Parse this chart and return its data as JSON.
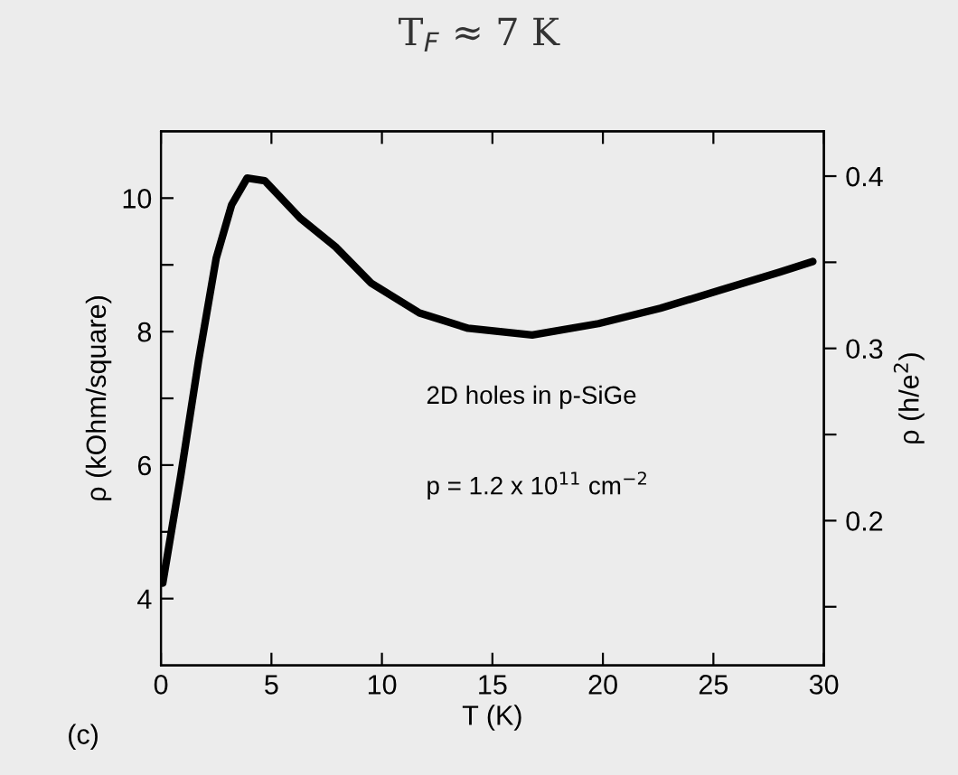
{
  "chart_data": {
    "type": "line",
    "title": "T$_{F}$ ≈ 7 K",
    "xlabel": "T (K)",
    "ylabel": "ρ (kOhm/square)",
    "y2label": "ρ (h/e$^{2}$)",
    "annotations": [
      "2D holes in p-SiGe",
      "p = 1.2 x 10$^{11}$ cm$^{−2}$",
      "(c)"
    ],
    "x": [
      0.08,
      0.9,
      1.7,
      2.5,
      3.2,
      3.9,
      4.7,
      6.3,
      7.9,
      9.5,
      11.7,
      13.9,
      16.8,
      19.8,
      22.6,
      25.3,
      28,
      29.5
    ],
    "series": [
      {
        "color": "#000000",
        "values": [
          4.23,
          5.85,
          7.56,
          9.1,
          9.9,
          10.3,
          10.26,
          9.7,
          9.27,
          8.73,
          8.28,
          8.05,
          7.95,
          8.12,
          8.35,
          8.62,
          8.89,
          9.05
        ]
      }
    ],
    "xlim": [
      0,
      30
    ],
    "xticks": [
      0,
      5,
      10,
      15,
      20,
      25,
      30
    ],
    "ylim": [
      3,
      11
    ],
    "yticks": [
      4,
      {
        "value": 5,
        "label": null
      },
      6,
      {
        "value": 7,
        "label": null
      },
      8,
      {
        "value": 9,
        "label": null
      },
      10
    ],
    "y2lim": [
      0.116,
      0.426
    ],
    "y2ticks": [
      {
        "value": 0.15,
        "label": null
      },
      0.2,
      {
        "value": 0.25,
        "label": null
      },
      0.3,
      {
        "value": 0.35,
        "label": null
      },
      0.4
    ],
    "grid": false,
    "legend": false,
    "marker": "none",
    "line_style": "solid"
  }
}
